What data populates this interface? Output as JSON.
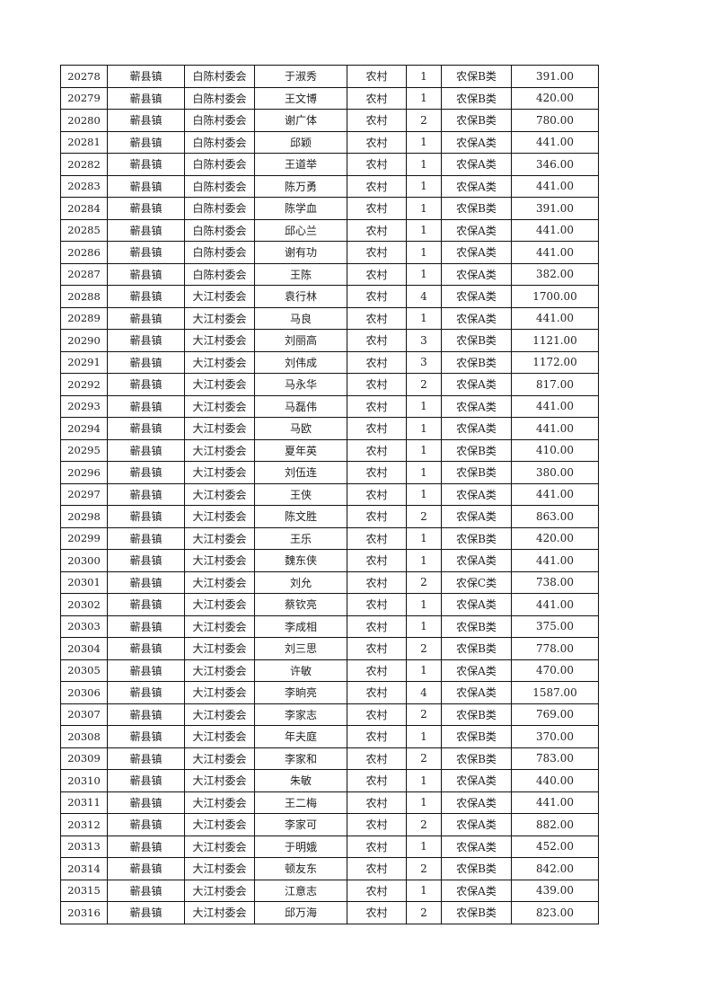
{
  "table": {
    "rows": [
      [
        "20278",
        "蕲县镇",
        "白陈村委会",
        "于淑秀",
        "农村",
        "1",
        "农保B类",
        "391.00"
      ],
      [
        "20279",
        "蕲县镇",
        "白陈村委会",
        "王文博",
        "农村",
        "1",
        "农保B类",
        "420.00"
      ],
      [
        "20280",
        "蕲县镇",
        "白陈村委会",
        "谢广体",
        "农村",
        "2",
        "农保B类",
        "780.00"
      ],
      [
        "20281",
        "蕲县镇",
        "白陈村委会",
        "邱颖",
        "农村",
        "1",
        "农保A类",
        "441.00"
      ],
      [
        "20282",
        "蕲县镇",
        "白陈村委会",
        "王道举",
        "农村",
        "1",
        "农保A类",
        "346.00"
      ],
      [
        "20283",
        "蕲县镇",
        "白陈村委会",
        "陈万勇",
        "农村",
        "1",
        "农保A类",
        "441.00"
      ],
      [
        "20284",
        "蕲县镇",
        "白陈村委会",
        "陈学血",
        "农村",
        "1",
        "农保B类",
        "391.00"
      ],
      [
        "20285",
        "蕲县镇",
        "白陈村委会",
        "邱心兰",
        "农村",
        "1",
        "农保A类",
        "441.00"
      ],
      [
        "20286",
        "蕲县镇",
        "白陈村委会",
        "谢有功",
        "农村",
        "1",
        "农保A类",
        "441.00"
      ],
      [
        "20287",
        "蕲县镇",
        "白陈村委会",
        "王陈",
        "农村",
        "1",
        "农保A类",
        "382.00"
      ],
      [
        "20288",
        "蕲县镇",
        "大江村委会",
        "袁行林",
        "农村",
        "4",
        "农保A类",
        "1700.00"
      ],
      [
        "20289",
        "蕲县镇",
        "大江村委会",
        "马良",
        "农村",
        "1",
        "农保A类",
        "441.00"
      ],
      [
        "20290",
        "蕲县镇",
        "大江村委会",
        "刘丽高",
        "农村",
        "3",
        "农保B类",
        "1121.00"
      ],
      [
        "20291",
        "蕲县镇",
        "大江村委会",
        "刘伟成",
        "农村",
        "3",
        "农保B类",
        "1172.00"
      ],
      [
        "20292",
        "蕲县镇",
        "大江村委会",
        "马永华",
        "农村",
        "2",
        "农保A类",
        "817.00"
      ],
      [
        "20293",
        "蕲县镇",
        "大江村委会",
        "马磊伟",
        "农村",
        "1",
        "农保A类",
        "441.00"
      ],
      [
        "20294",
        "蕲县镇",
        "大江村委会",
        "马欧",
        "农村",
        "1",
        "农保A类",
        "441.00"
      ],
      [
        "20295",
        "蕲县镇",
        "大江村委会",
        "夏年英",
        "农村",
        "1",
        "农保B类",
        "410.00"
      ],
      [
        "20296",
        "蕲县镇",
        "大江村委会",
        "刘伍连",
        "农村",
        "1",
        "农保B类",
        "380.00"
      ],
      [
        "20297",
        "蕲县镇",
        "大江村委会",
        "王侠",
        "农村",
        "1",
        "农保A类",
        "441.00"
      ],
      [
        "20298",
        "蕲县镇",
        "大江村委会",
        "陈文胜",
        "农村",
        "2",
        "农保A类",
        "863.00"
      ],
      [
        "20299",
        "蕲县镇",
        "大江村委会",
        "王乐",
        "农村",
        "1",
        "农保B类",
        "420.00"
      ],
      [
        "20300",
        "蕲县镇",
        "大江村委会",
        "魏东侠",
        "农村",
        "1",
        "农保A类",
        "441.00"
      ],
      [
        "20301",
        "蕲县镇",
        "大江村委会",
        "刘允",
        "农村",
        "2",
        "农保C类",
        "738.00"
      ],
      [
        "20302",
        "蕲县镇",
        "大江村委会",
        "蔡钦亮",
        "农村",
        "1",
        "农保A类",
        "441.00"
      ],
      [
        "20303",
        "蕲县镇",
        "大江村委会",
        "李成相",
        "农村",
        "1",
        "农保B类",
        "375.00"
      ],
      [
        "20304",
        "蕲县镇",
        "大江村委会",
        "刘三思",
        "农村",
        "2",
        "农保B类",
        "778.00"
      ],
      [
        "20305",
        "蕲县镇",
        "大江村委会",
        "许敏",
        "农村",
        "1",
        "农保A类",
        "470.00"
      ],
      [
        "20306",
        "蕲县镇",
        "大江村委会",
        "李晌亮",
        "农村",
        "4",
        "农保A类",
        "1587.00"
      ],
      [
        "20307",
        "蕲县镇",
        "大江村委会",
        "李家志",
        "农村",
        "2",
        "农保B类",
        "769.00"
      ],
      [
        "20308",
        "蕲县镇",
        "大江村委会",
        "年夫庭",
        "农村",
        "1",
        "农保B类",
        "370.00"
      ],
      [
        "20309",
        "蕲县镇",
        "大江村委会",
        "李家和",
        "农村",
        "2",
        "农保B类",
        "783.00"
      ],
      [
        "20310",
        "蕲县镇",
        "大江村委会",
        "朱敏",
        "农村",
        "1",
        "农保A类",
        "440.00"
      ],
      [
        "20311",
        "蕲县镇",
        "大江村委会",
        "王二梅",
        "农村",
        "1",
        "农保A类",
        "441.00"
      ],
      [
        "20312",
        "蕲县镇",
        "大江村委会",
        "李家可",
        "农村",
        "2",
        "农保A类",
        "882.00"
      ],
      [
        "20313",
        "蕲县镇",
        "大江村委会",
        "于明娥",
        "农村",
        "1",
        "农保A类",
        "452.00"
      ],
      [
        "20314",
        "蕲县镇",
        "大江村委会",
        "顿友东",
        "农村",
        "2",
        "农保B类",
        "842.00"
      ],
      [
        "20315",
        "蕲县镇",
        "大江村委会",
        "江意志",
        "农村",
        "1",
        "农保A类",
        "439.00"
      ],
      [
        "20316",
        "蕲县镇",
        "大江村委会",
        "邱万海",
        "农村",
        "2",
        "农保B类",
        "823.00"
      ]
    ]
  }
}
